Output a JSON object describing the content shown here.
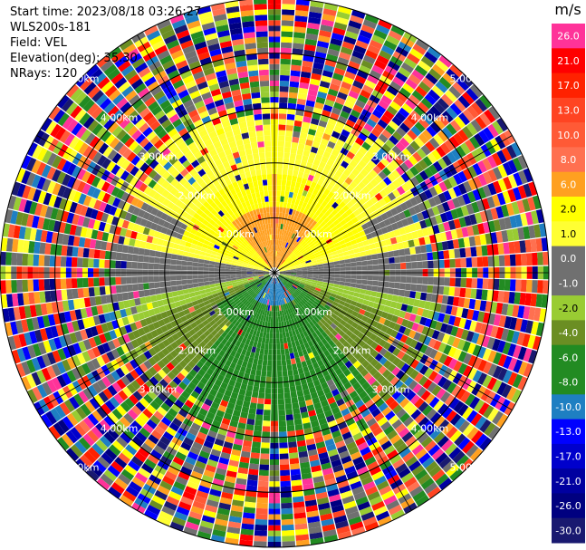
{
  "header": {
    "start_time": "Start time: 2023/08/18 03:26:27",
    "instrument": "WLS200s-181",
    "field": "Field: VEL",
    "elevation": "Elevation(deg): 35.30",
    "nrays": "NRays: 120"
  },
  "colorbar": {
    "unit": "m/s",
    "levels": [
      {
        "label": "26.0",
        "color": "#ff3399"
      },
      {
        "label": "21.0",
        "color": "#ff0000"
      },
      {
        "label": "17.0",
        "color": "#ff2200"
      },
      {
        "label": "13.0",
        "color": "#ff4422"
      },
      {
        "label": "10.0",
        "color": "#ff5a36"
      },
      {
        "label": "8.0",
        "color": "#ff7050"
      },
      {
        "label": "6.0",
        "color": "#ffa020"
      },
      {
        "label": "2.0",
        "color": "#ffff00"
      },
      {
        "label": "1.0",
        "color": "#ffff33"
      },
      {
        "label": "0.0",
        "color": "#707070"
      },
      {
        "label": "-1.0",
        "color": "#707070"
      },
      {
        "label": "-2.0",
        "color": "#99cc33"
      },
      {
        "label": "-4.0",
        "color": "#6b8e23"
      },
      {
        "label": "-6.0",
        "color": "#228b22"
      },
      {
        "label": "-8.0",
        "color": "#228b22"
      },
      {
        "label": "-10.0",
        "color": "#1e7fc2"
      },
      {
        "label": "-13.0",
        "color": "#0000ff"
      },
      {
        "label": "-17.0",
        "color": "#0000cc"
      },
      {
        "label": "-21.0",
        "color": "#0000a0"
      },
      {
        "label": "-26.0",
        "color": "#000080"
      },
      {
        "label": "-30.0",
        "color": "#191970"
      }
    ]
  },
  "chart_data": {
    "type": "heatmap",
    "projection": "polar PPI",
    "field": "VEL",
    "nrays": 120,
    "range_rings": [
      {
        "label": "1.00km"
      },
      {
        "label": "2.00km"
      },
      {
        "label": "3.00km"
      },
      {
        "label": "4.00km"
      },
      {
        "label": "5.00km"
      }
    ],
    "max_range_km": 5.0,
    "pattern": {
      "north_near_m_s": 8.0,
      "north_mid_m_s": 2.0,
      "south_near_m_s": -10.0,
      "south_mid_m_s": -6.0,
      "east_west_m_s": 0.0,
      "noise_beyond_km": 3.0
    }
  }
}
